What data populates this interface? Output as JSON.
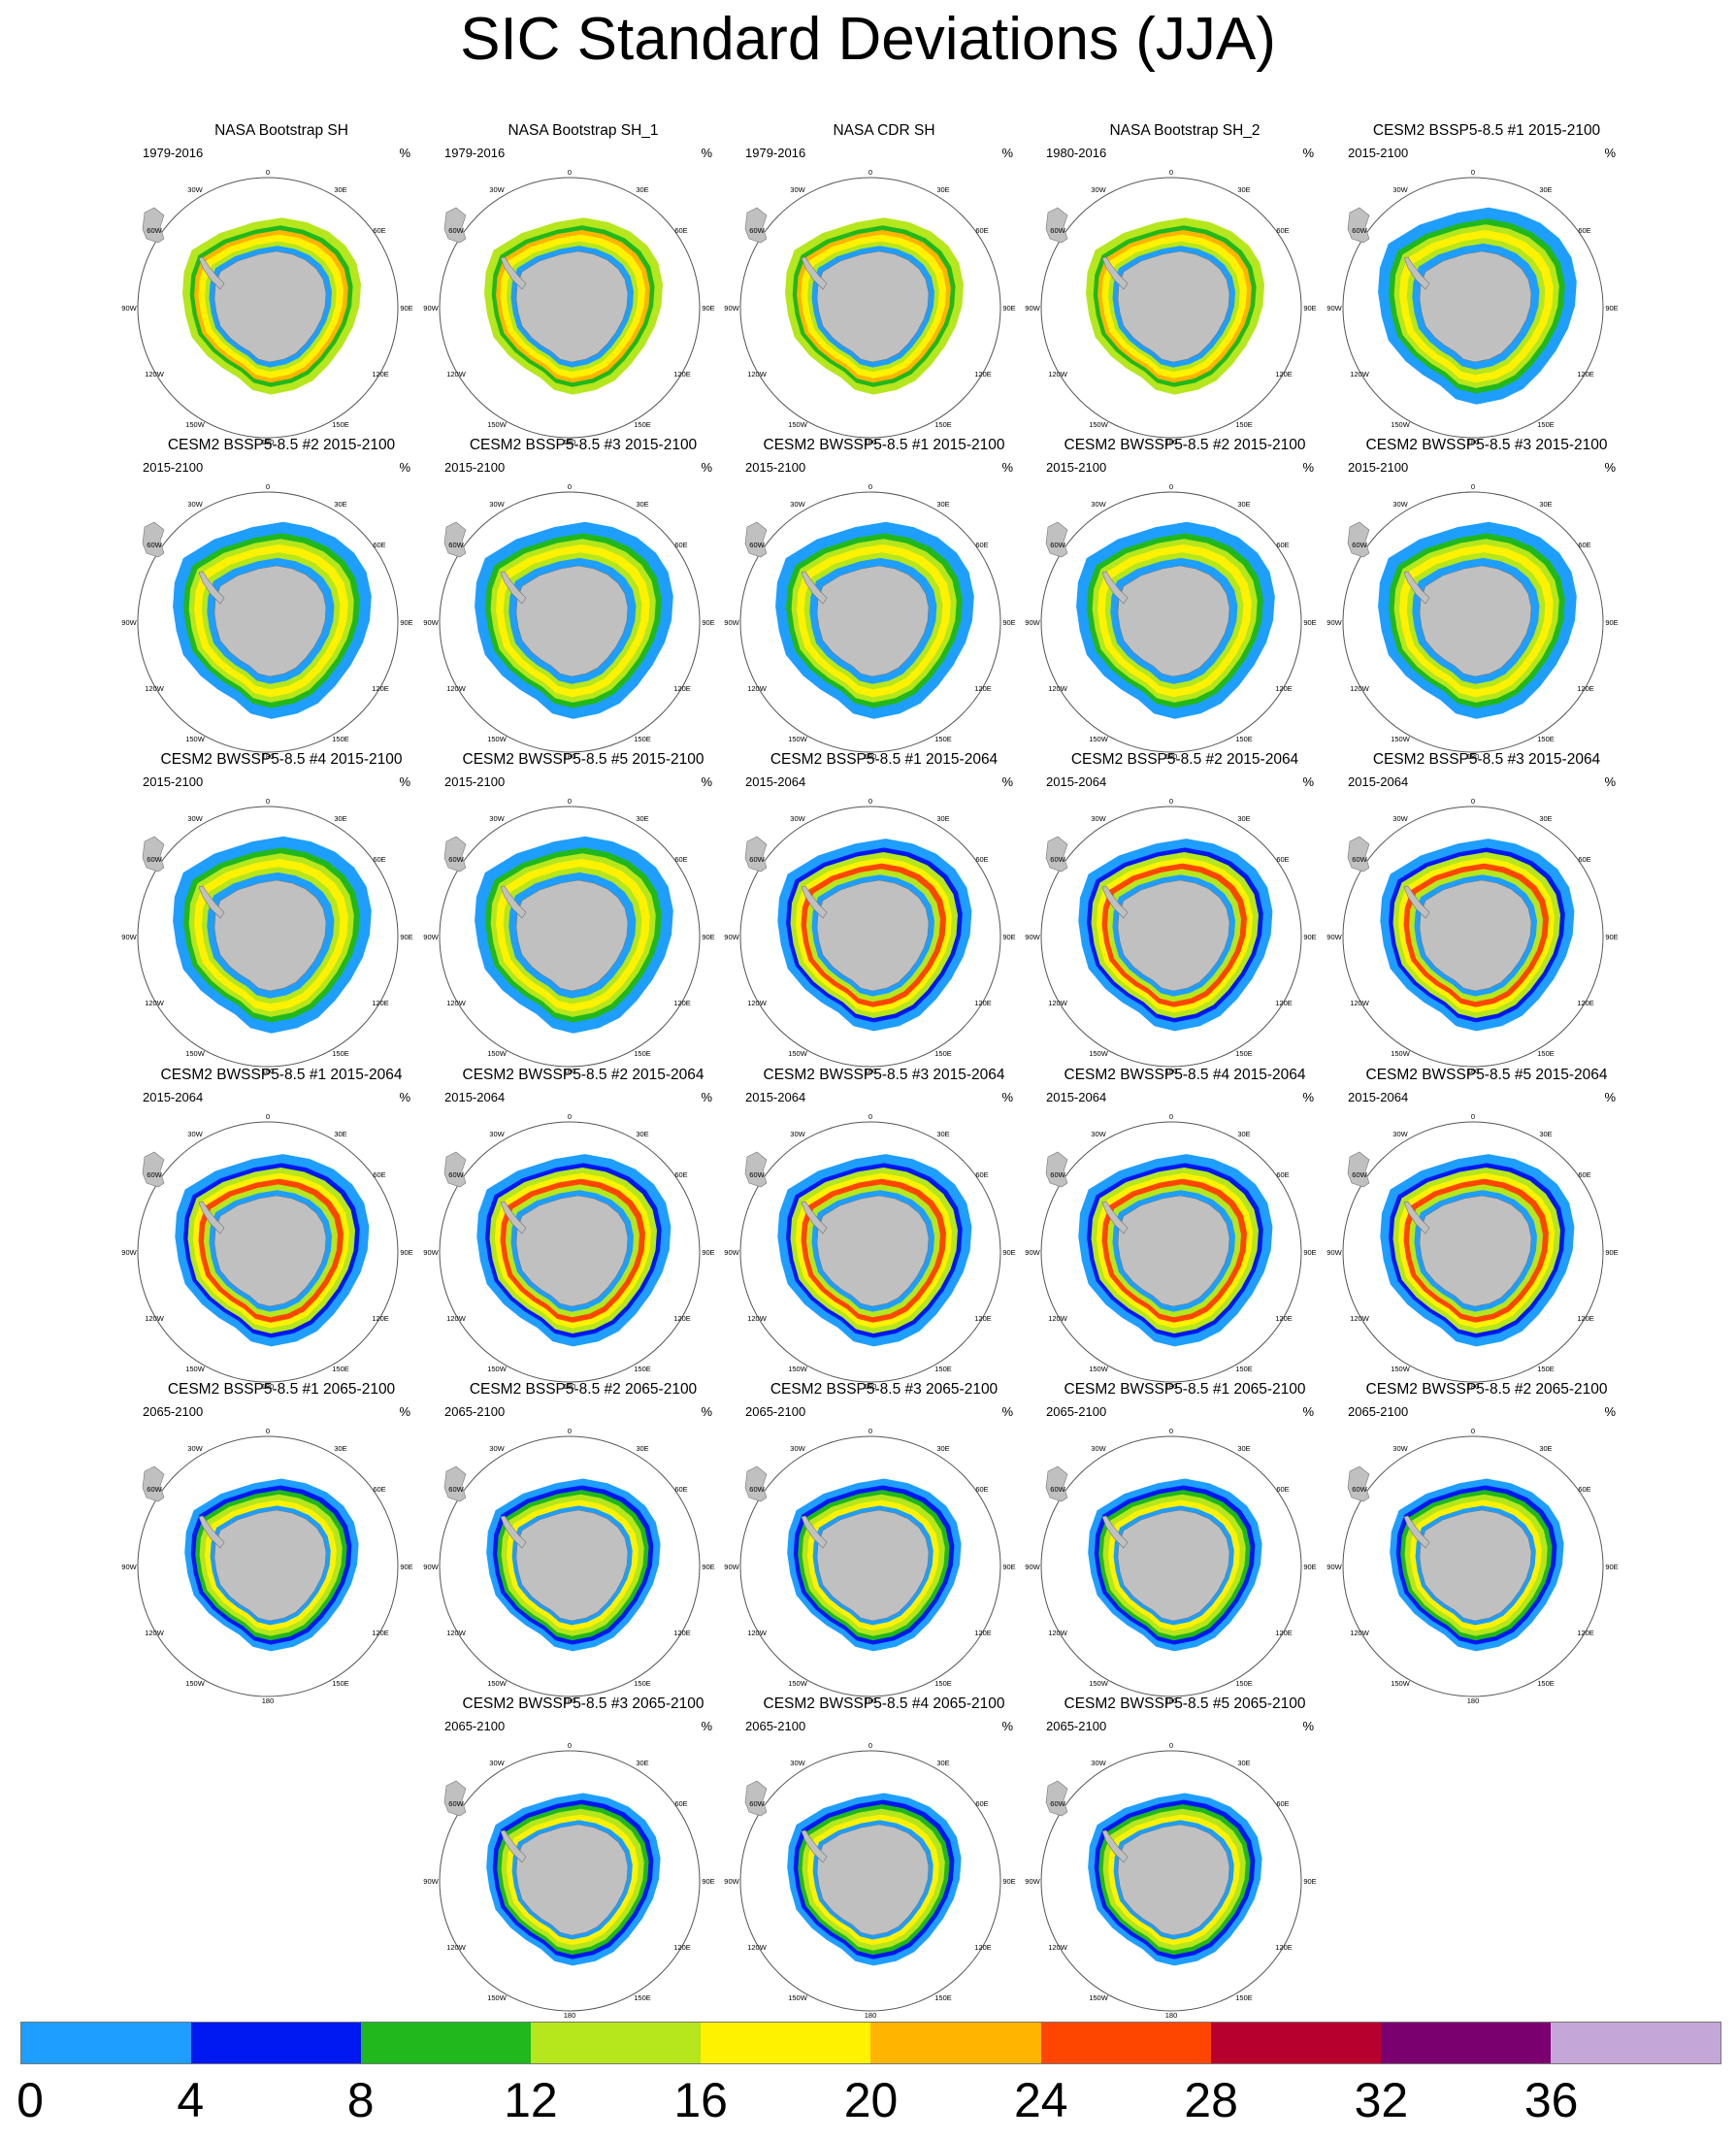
{
  "title": "SIC Standard Deviations (JJA)",
  "unit": "%",
  "colors": {
    "land": "#c0c0c0",
    "ocean": "#ffffff"
  },
  "map_labels": {
    "lon_0": "0",
    "lon_30E": "30E",
    "lon_60E": "60E",
    "lon_90E": "90E",
    "lon_120E": "120E",
    "lon_150E": "150E",
    "lon_180": "180",
    "lon_150W": "150W",
    "lon_120W": "120W",
    "lon_90W": "90W",
    "lon_60W": "60W",
    "lon_30W": "30W"
  },
  "colorbar": {
    "ticks": [
      "0",
      "4",
      "8",
      "12",
      "16",
      "20",
      "24",
      "28",
      "32",
      "36"
    ],
    "colors": [
      "#1e9eff",
      "#0018f0",
      "#20b81c",
      "#b6e61c",
      "#fff200",
      "#ffb400",
      "#ff4600",
      "#b8002e",
      "#7a0070",
      "#c4a7d8"
    ]
  },
  "panels": [
    {
      "title": "NASA Bootstrap SH",
      "years": "1979-2016",
      "kind": "obs"
    },
    {
      "title": "NASA Bootstrap SH_1",
      "years": "1979-2016",
      "kind": "obs"
    },
    {
      "title": "NASA CDR SH",
      "years": "1979-2016",
      "kind": "obs"
    },
    {
      "title": "NASA Bootstrap SH_2",
      "years": "1980-2016",
      "kind": "obs"
    },
    {
      "title": "CESM2 BSSP5-8.5 #1 2015-2100",
      "years": "2015-2100",
      "kind": "full"
    },
    {
      "title": "CESM2 BSSP5-8.5 #2 2015-2100",
      "years": "2015-2100",
      "kind": "full"
    },
    {
      "title": "CESM2 BSSP5-8.5 #3 2015-2100",
      "years": "2015-2100",
      "kind": "full"
    },
    {
      "title": "CESM2 BWSSP5-8.5 #1 2015-2100",
      "years": "2015-2100",
      "kind": "full"
    },
    {
      "title": "CESM2 BWSSP5-8.5 #2 2015-2100",
      "years": "2015-2100",
      "kind": "full"
    },
    {
      "title": "CESM2 BWSSP5-8.5 #3 2015-2100",
      "years": "2015-2100",
      "kind": "full"
    },
    {
      "title": "CESM2 BWSSP5-8.5 #4 2015-2100",
      "years": "2015-2100",
      "kind": "full"
    },
    {
      "title": "CESM2 BWSSP5-8.5 #5 2015-2100",
      "years": "2015-2100",
      "kind": "full"
    },
    {
      "title": "CESM2 BSSP5-8.5 #1 2015-2064",
      "years": "2015-2064",
      "kind": "early"
    },
    {
      "title": "CESM2 BSSP5-8.5 #2 2015-2064",
      "years": "2015-2064",
      "kind": "early"
    },
    {
      "title": "CESM2 BSSP5-8.5 #3 2015-2064",
      "years": "2015-2064",
      "kind": "early"
    },
    {
      "title": "CESM2 BWSSP5-8.5 #1 2015-2064",
      "years": "2015-2064",
      "kind": "early"
    },
    {
      "title": "CESM2 BWSSP5-8.5 #2 2015-2064",
      "years": "2015-2064",
      "kind": "early"
    },
    {
      "title": "CESM2 BWSSP5-8.5 #3 2015-2064",
      "years": "2015-2064",
      "kind": "early"
    },
    {
      "title": "CESM2 BWSSP5-8.5 #4 2015-2064",
      "years": "2015-2064",
      "kind": "early"
    },
    {
      "title": "CESM2 BWSSP5-8.5 #5 2015-2064",
      "years": "2015-2064",
      "kind": "early"
    },
    {
      "title": "CESM2 BSSP5-8.5 #1 2065-2100",
      "years": "2065-2100",
      "kind": "late"
    },
    {
      "title": "CESM2 BSSP5-8.5 #2 2065-2100",
      "years": "2065-2100",
      "kind": "late"
    },
    {
      "title": "CESM2 BSSP5-8.5 #3 2065-2100",
      "years": "2065-2100",
      "kind": "late"
    },
    {
      "title": "CESM2 BWSSP5-8.5 #1 2065-2100",
      "years": "2065-2100",
      "kind": "late"
    },
    {
      "title": "CESM2 BWSSP5-8.5 #2 2065-2100",
      "years": "2065-2100",
      "kind": "late"
    },
    {
      "title": "CESM2 BWSSP5-8.5 #3 2065-2100",
      "years": "2065-2100",
      "kind": "late"
    },
    {
      "title": "CESM2 BWSSP5-8.5 #4 2065-2100",
      "years": "2065-2100",
      "kind": "late"
    },
    {
      "title": "CESM2 BWSSP5-8.5 #5 2065-2100",
      "years": "2065-2100",
      "kind": "late"
    }
  ]
}
